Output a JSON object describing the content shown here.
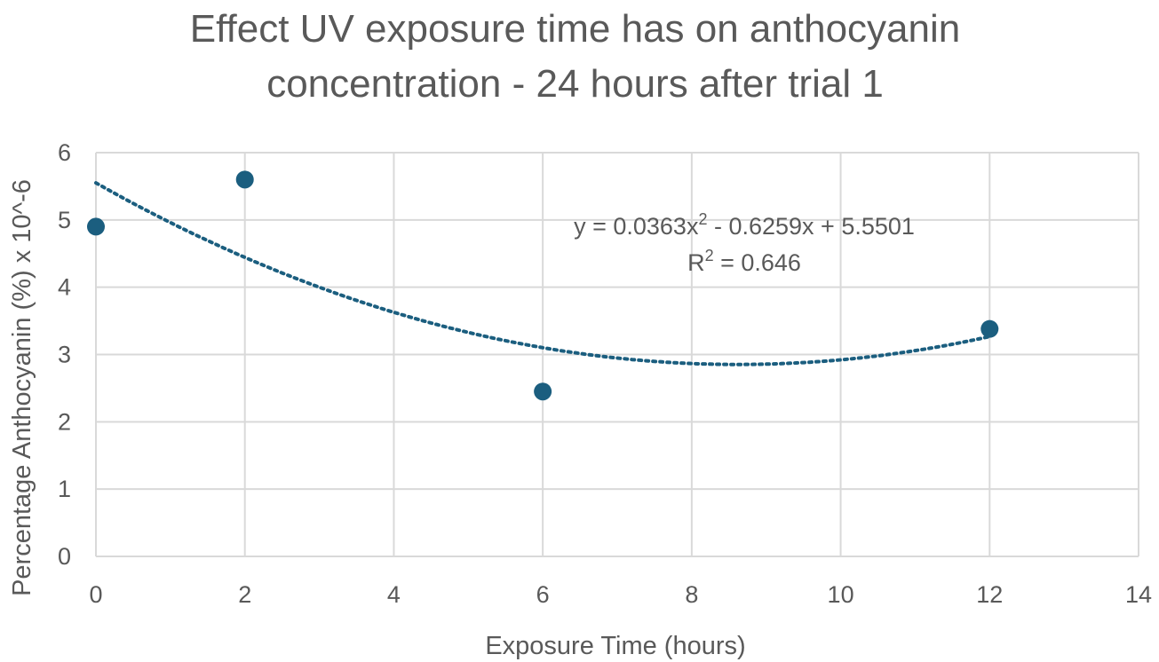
{
  "chart_data": {
    "type": "scatter",
    "title_lines": [
      "Effect UV exposure time has on anthocyanin",
      "concentration - 24 hours after trial 1"
    ],
    "xlabel": "Exposure Time (hours)",
    "ylabel": "Percentage Anthocyanin (%) x 10^-6",
    "xlim": [
      0,
      14
    ],
    "ylim": [
      0,
      6
    ],
    "xticks": [
      0,
      2,
      4,
      6,
      8,
      10,
      12,
      14
    ],
    "yticks": [
      0,
      1,
      2,
      3,
      4,
      5,
      6
    ],
    "grid": true,
    "marker_color": "#1b5e7f",
    "trendline_color": "#1b5e7f",
    "series": [
      {
        "x": [
          0,
          2,
          6,
          12
        ],
        "y": [
          4.9,
          5.6,
          2.45,
          3.38
        ]
      }
    ],
    "trendline": {
      "type": "polynomial",
      "order": 2,
      "coefficients": [
        0.0363,
        -0.6259,
        5.5501
      ],
      "x_range": [
        0,
        12
      ],
      "equation": {
        "prefix": "y = 0.0363x",
        "exp": "2",
        "suffix": " - 0.6259x + 5.5501"
      },
      "r_squared": {
        "prefix": "R",
        "exp": "2",
        "suffix": " = 0.646"
      }
    }
  }
}
